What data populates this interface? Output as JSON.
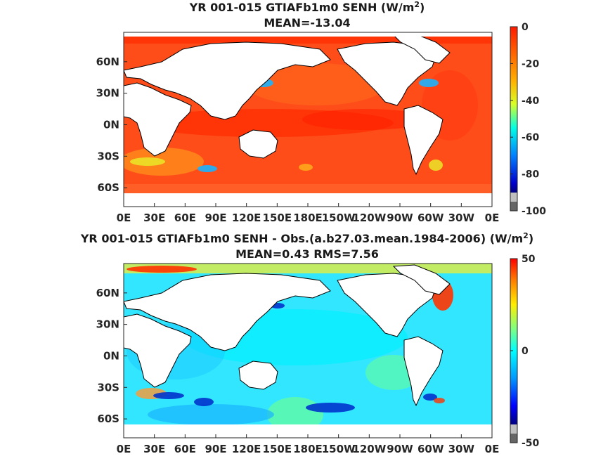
{
  "chart_data": [
    {
      "type": "heatmap",
      "title": "YR 001-015 GTIAFb1m0  SENH (W/m",
      "title_unit_exp": "2",
      "title_close": ")",
      "subtitle": "MEAN=-13.04",
      "x_ticks": [
        "0E",
        "30E",
        "60E",
        "90E",
        "120E",
        "150E",
        "180E",
        "150W",
        "120W",
        "90W",
        "60W",
        "30W",
        "0E"
      ],
      "y_ticks": [
        "60N",
        "30N",
        "0N",
        "30S",
        "60S"
      ],
      "xlim": [
        0,
        360
      ],
      "ylim": [
        -78,
        88
      ],
      "colorbar": {
        "min": -100,
        "max": 0,
        "ticks": [
          "0",
          "-20",
          "-40",
          "-60",
          "-80",
          "-100"
        ],
        "tick_values": [
          0,
          -20,
          -40,
          -60,
          -80,
          -100
        ]
      },
      "colors": {
        "field_main": "#ff4d1a",
        "field_warm": "#ff2a00",
        "field_mid": "#ff8c1a",
        "field_low": "#e8f028",
        "field_cool": "#1ab4ff",
        "land": "#ffffff"
      }
    },
    {
      "type": "heatmap",
      "title": "YR 001-015 GTIAFb1m0 SENH - Obs.(a.b27.03.mean.1984-2006) (W/m",
      "title_unit_exp": "2",
      "title_close": ")",
      "subtitle": "MEAN=0.43 RMS=7.56",
      "x_ticks": [
        "0E",
        "30E",
        "60E",
        "90E",
        "120E",
        "150E",
        "180E",
        "150W",
        "120W",
        "90W",
        "60W",
        "30W",
        "0E"
      ],
      "y_ticks": [
        "60N",
        "30N",
        "0N",
        "30S",
        "60S"
      ],
      "xlim": [
        0,
        360
      ],
      "ylim": [
        -78,
        88
      ],
      "colorbar": {
        "min": -50,
        "max": 50,
        "ticks": [
          "50",
          "0",
          "-50"
        ],
        "tick_values": [
          50,
          0,
          -50
        ]
      },
      "colors": {
        "field_main": "#33e6ff",
        "field_warm": "#ff3300",
        "field_mid": "#66ff99",
        "field_low": "#ffee22",
        "field_cool": "#0033cc",
        "land": "#ffffff"
      }
    }
  ]
}
